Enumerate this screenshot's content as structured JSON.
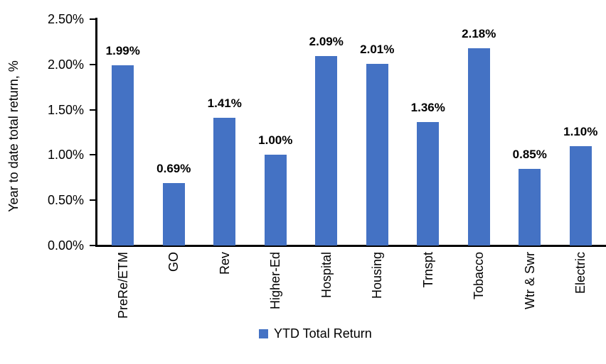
{
  "chart_data": {
    "type": "bar",
    "title": "",
    "xlabel": "",
    "ylabel": "Year to date total return, %",
    "categories": [
      "PreRe/ETM",
      "GO",
      "Rev",
      "Higher-Ed",
      "Hospital",
      "Housing",
      "Trnspt",
      "Tobacco",
      "Wtr & Swr",
      "Electric"
    ],
    "values": [
      1.99,
      0.69,
      1.41,
      1.0,
      2.09,
      2.01,
      1.36,
      2.18,
      0.85,
      1.1
    ],
    "data_labels": [
      "1.99%",
      "0.69%",
      "1.41%",
      "1.00%",
      "2.09%",
      "2.01%",
      "1.36%",
      "2.18%",
      "0.85%",
      "1.10%"
    ],
    "ylim": [
      0,
      2.5
    ],
    "ytick_step": 0.5,
    "ytick_labels": [
      "0.00%",
      "0.50%",
      "1.00%",
      "1.50%",
      "2.00%",
      "2.50%"
    ],
    "grid": false,
    "bar_color": "#4472C4",
    "axis_color": "#000000",
    "legend_position": "bottom",
    "legend": [
      {
        "label": "YTD Total Return",
        "color": "#4472C4"
      }
    ]
  }
}
